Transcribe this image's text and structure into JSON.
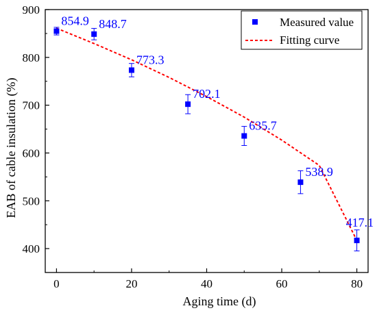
{
  "chart_data": {
    "type": "scatter",
    "xlabel": "Aging time (d)",
    "ylabel": "EAB of cable insulation (%)",
    "xlim": [
      -3,
      83
    ],
    "ylim": [
      350,
      900
    ],
    "xticks": [
      0,
      20,
      40,
      60,
      80
    ],
    "yticks": [
      400,
      500,
      600,
      700,
      800,
      900
    ],
    "series": [
      {
        "name": "Measured value",
        "kind": "scatter",
        "color": "#0000ff",
        "x": [
          0,
          10,
          20,
          35,
          50,
          65,
          80
        ],
        "y": [
          854.9,
          848.7,
          773.3,
          702.1,
          635.7,
          538.9,
          417.1
        ],
        "error": [
          8,
          12,
          14,
          20,
          20,
          24,
          22
        ],
        "labels": [
          "854.9",
          "848.7",
          "773.3",
          "702.1",
          "635.7",
          "538.9",
          "417.1"
        ]
      },
      {
        "name": "Fitting curve",
        "kind": "line",
        "style": "dashed",
        "color": "#ff0000",
        "x": [
          0,
          10,
          20,
          30,
          40,
          50,
          60,
          70,
          80
        ],
        "y": [
          861,
          829,
          795,
          758,
          718,
          675,
          627,
          574,
          417.1
        ]
      }
    ],
    "legend_position": "top-right",
    "grid": false
  }
}
